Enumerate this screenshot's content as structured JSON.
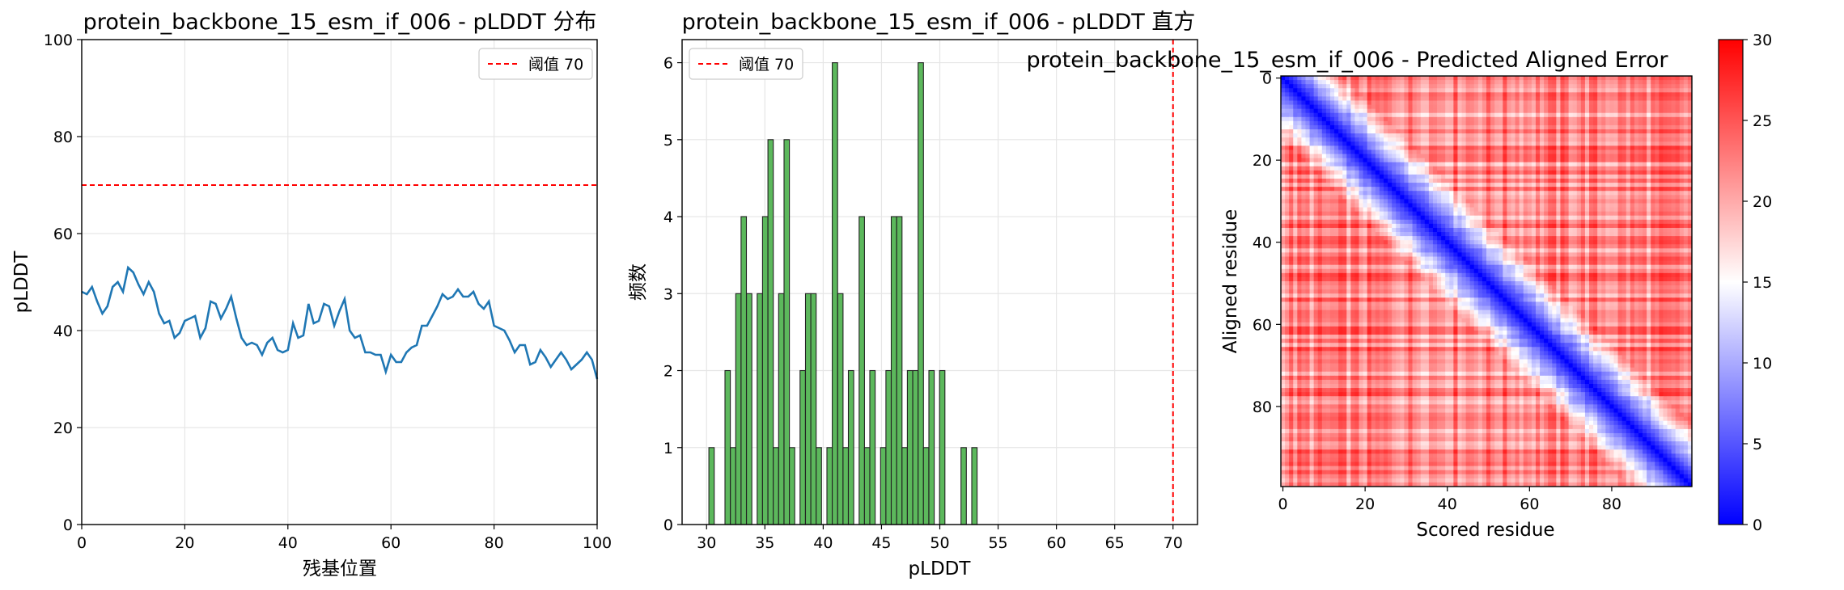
{
  "chart_data": [
    {
      "type": "line",
      "title": "protein_backbone_15_esm_if_006 - pLDDT 分布",
      "xlabel": "残基位置",
      "ylabel": "pLDDT",
      "xlim": [
        0,
        100
      ],
      "ylim": [
        0,
        100
      ],
      "x_ticks": [
        "0",
        "20",
        "40",
        "60",
        "80",
        "100"
      ],
      "y_ticks": [
        "0",
        "20",
        "40",
        "60",
        "80",
        "100"
      ],
      "grid": true,
      "legend_placement": "top-right",
      "threshold": {
        "value": 70,
        "label": "阈值 70",
        "color": "#ff0000"
      },
      "line_color": "#1f77b4",
      "series": [
        {
          "x": [
            0,
            1,
            2,
            3,
            4,
            5,
            6,
            7,
            8,
            9,
            10,
            11,
            12,
            13,
            14,
            15,
            16,
            17,
            18,
            19,
            20,
            21,
            22,
            23,
            24,
            25,
            26,
            27,
            28,
            29,
            30,
            31,
            32,
            33,
            34,
            35,
            36,
            37,
            38,
            39,
            40,
            41,
            42,
            43,
            44,
            45,
            46,
            47,
            48,
            49,
            50,
            51,
            52,
            53,
            54,
            55,
            56,
            57,
            58,
            59,
            60,
            61,
            62,
            63,
            64,
            65,
            66,
            67,
            68,
            69,
            70,
            71,
            72,
            73,
            74,
            75,
            76,
            77,
            78,
            79,
            80,
            81,
            82,
            83,
            84,
            85,
            86,
            87,
            88,
            89,
            90,
            91,
            92,
            93,
            94,
            95,
            96,
            97,
            98,
            99,
            100
          ],
          "y": [
            48,
            47.5,
            49,
            46,
            43.5,
            45,
            49,
            50,
            48,
            53,
            52,
            49.5,
            47.5,
            50,
            48,
            43.5,
            41.5,
            42,
            38.5,
            39.5,
            42,
            42.5,
            43,
            38.5,
            40.5,
            46,
            45.5,
            42.5,
            44.5,
            47,
            42.5,
            38.5,
            37,
            37.5,
            37,
            35,
            37.5,
            38.5,
            36,
            35.5,
            36,
            41.5,
            38.5,
            39,
            45.5,
            41.5,
            42,
            45.5,
            45,
            41,
            44,
            46.5,
            40,
            38.5,
            39,
            35.5,
            35.5,
            35,
            35,
            31.5,
            35,
            33.5,
            33.5,
            35.5,
            36.5,
            37,
            41,
            41,
            43,
            45,
            47.5,
            46.5,
            47,
            48.5,
            47,
            47,
            48,
            45.5,
            44.5,
            46,
            41,
            40.5,
            40,
            38,
            35.5,
            37,
            37,
            33,
            33.5,
            36,
            34.5,
            32.5,
            34,
            35.5,
            34,
            32,
            33,
            34,
            35.5,
            34,
            30
          ]
        }
      ]
    },
    {
      "type": "bar",
      "title": "protein_backbone_15_esm_if_006 - pLDDT 直方",
      "xlabel": "pLDDT",
      "ylabel": "频数",
      "xlim": [
        27.9,
        72.1
      ],
      "ylim": [
        0,
        6.3
      ],
      "x_ticks": [
        "30",
        "35",
        "40",
        "45",
        "50",
        "55",
        "60",
        "65",
        "70"
      ],
      "y_ticks": [
        "0",
        "1",
        "2",
        "3",
        "4",
        "5",
        "6"
      ],
      "grid": true,
      "legend_placement": "top-left",
      "threshold": {
        "value": 70,
        "label": "阈值 70",
        "color": "#ff0000"
      },
      "bar_color": "#5cb85c",
      "bar_edge_color": "#222222",
      "bin_width": 0.46,
      "bins_start": [
        30.2,
        30.66,
        31.12,
        31.58,
        32.04,
        32.5,
        32.96,
        33.42,
        33.88,
        34.34,
        34.8,
        35.26,
        35.72,
        36.18,
        36.64,
        37.1,
        37.56,
        38.02,
        38.48,
        38.94,
        39.4,
        39.86,
        40.32,
        40.78,
        41.24,
        41.7,
        42.16,
        42.62,
        43.08,
        43.54,
        44.0,
        44.46,
        44.92,
        45.38,
        45.84,
        46.3,
        46.76,
        47.22,
        47.68,
        48.14,
        48.6,
        49.06,
        49.52,
        49.98,
        50.44,
        50.9,
        51.36,
        51.82,
        52.28,
        52.74
      ],
      "counts": [
        1,
        0,
        0,
        2,
        1,
        3,
        4,
        3,
        0,
        3,
        4,
        5,
        1,
        3,
        5,
        1,
        0,
        2,
        3,
        3,
        1,
        0,
        1,
        6,
        3,
        1,
        2,
        0,
        4,
        1,
        2,
        0,
        1,
        2,
        4,
        4,
        1,
        2,
        2,
        6,
        1,
        2,
        0,
        2,
        0,
        0,
        0,
        1,
        0,
        1
      ]
    },
    {
      "type": "heatmap",
      "title": "protein_backbone_15_esm_if_006 - Predicted Aligned Error",
      "xlabel": "Scored residue",
      "ylabel": "Aligned residue",
      "size": 100,
      "x_ticks": [
        "0",
        "20",
        "40",
        "60",
        "80"
      ],
      "y_ticks": [
        "0",
        "20",
        "40",
        "60",
        "80"
      ],
      "colormap": "bwr",
      "vmin": 0,
      "vmax": 30,
      "colorbar_ticks": [
        "0",
        "5",
        "10",
        "15",
        "20",
        "25",
        "30"
      ],
      "description_values": {
        "diagonal": 0,
        "near_diagonal_band_width": 15,
        "off_diagonal_typical": 22
      }
    }
  ]
}
